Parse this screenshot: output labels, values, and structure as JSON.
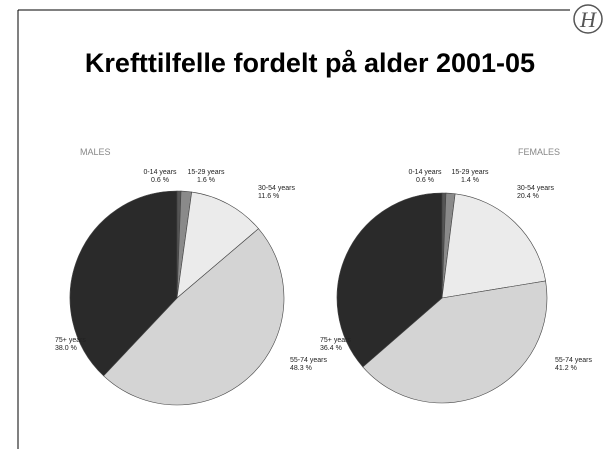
{
  "logo": "H",
  "title": "Krefttilfelle fordelt på alder 2001-05",
  "chart_data": [
    {
      "type": "pie",
      "title": "MALES",
      "categories": [
        "0-14 years",
        "15-29 years",
        "30-54 years",
        "55-74 years",
        "75+ years"
      ],
      "values": [
        0.6,
        1.6,
        11.6,
        48.3,
        38.0
      ],
      "value_labels": [
        "0.6 %",
        "1.6 %",
        "11.6 %",
        "48.3 %",
        "38.0 %"
      ],
      "colors": [
        "#555555",
        "#8a8a8a",
        "#ebebeb",
        "#d4d4d4",
        "#2a2a2a"
      ]
    },
    {
      "type": "pie",
      "title": "FEMALES",
      "categories": [
        "0-14 years",
        "15-29 years",
        "30-54 years",
        "55-74 years",
        "75+ years"
      ],
      "values": [
        0.6,
        1.4,
        20.4,
        41.2,
        36.4
      ],
      "value_labels": [
        "0.6 %",
        "1.4 %",
        "20.4 %",
        "41.2 %",
        "36.4 %"
      ],
      "colors": [
        "#555555",
        "#8a8a8a",
        "#ebebeb",
        "#d4d4d4",
        "#2a2a2a"
      ]
    }
  ]
}
